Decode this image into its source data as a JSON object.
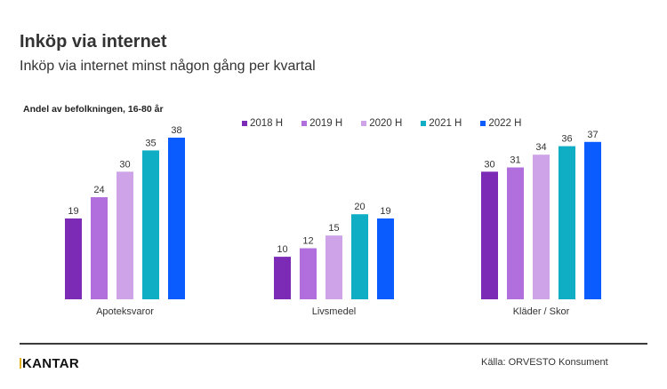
{
  "header": {
    "title": "Inköp via internet",
    "subtitle": "Inköp via internet minst någon gång per kvartal"
  },
  "footer": {
    "logo": "KANTAR",
    "source": "Källa: ORVESTO Konsument"
  },
  "chart_data": {
    "type": "bar",
    "title": "Inköp via internet",
    "subtitle": "Inköp via internet minst någon gång per kvartal",
    "ylabel": "Andel av befolkningen, 16-80 år",
    "xlabel": "",
    "categories": [
      "Apoteksvaror",
      "Livsmedel",
      "Kläder / Skor"
    ],
    "series": [
      {
        "name": "2018 H",
        "color": "#7b2bb6",
        "values": [
          19,
          10,
          30
        ]
      },
      {
        "name": "2019 H",
        "color": "#b06fdc",
        "values": [
          24,
          12,
          31
        ]
      },
      {
        "name": "2020 H",
        "color": "#cfa3e8",
        "values": [
          30,
          15,
          34
        ]
      },
      {
        "name": "2021 H",
        "color": "#10aec4",
        "values": [
          35,
          20,
          36
        ]
      },
      {
        "name": "2022 H",
        "color": "#0a5cff",
        "values": [
          38,
          19,
          37
        ]
      }
    ],
    "ylim": [
      0,
      38
    ],
    "grid": false,
    "legend_position": "top-center",
    "data_labels": true
  }
}
